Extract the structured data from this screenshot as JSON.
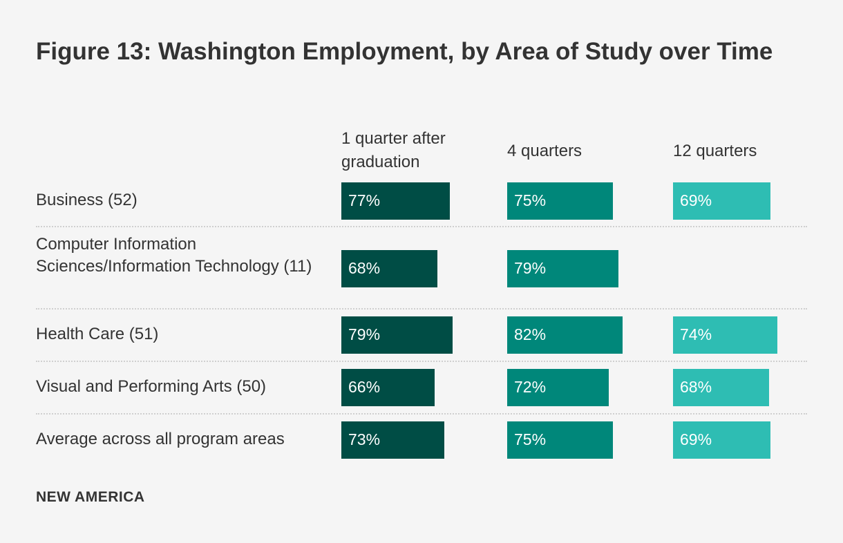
{
  "chart_data": {
    "type": "table",
    "title": "Figure 13: Washington Employment, by Area of Study over Time",
    "columns": [
      "1 quarter after graduation",
      "4 quarters",
      "12 quarters"
    ],
    "series_colors": [
      "#004d45",
      "#00877a",
      "#2ebdb3"
    ],
    "rows": [
      {
        "label": "Business (52)",
        "values": [
          77,
          75,
          69
        ],
        "labels": [
          "77%",
          "75%",
          "69%"
        ]
      },
      {
        "label": "Computer Information Sciences/Information Technology (11)",
        "values": [
          68,
          79,
          null
        ],
        "labels": [
          "68%",
          "79%",
          ""
        ]
      },
      {
        "label": "Health Care (51)",
        "values": [
          79,
          82,
          74
        ],
        "labels": [
          "79%",
          "82%",
          "74%"
        ]
      },
      {
        "label": "Visual and Performing Arts (50)",
        "values": [
          66,
          72,
          68
        ],
        "labels": [
          "66%",
          "72%",
          "68%"
        ]
      },
      {
        "label": "Average across all program areas",
        "values": [
          73,
          75,
          69
        ],
        "labels": [
          "73%",
          "75%",
          "69%"
        ]
      }
    ]
  },
  "brand": "NEW AMERICA"
}
